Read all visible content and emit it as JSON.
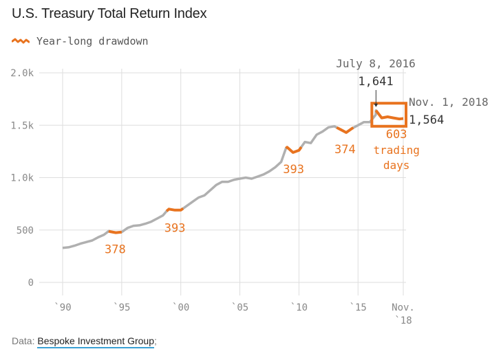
{
  "title": "U.S. Treasury Total Return Index",
  "legend": {
    "label": "Year-long drawdown",
    "icon": "orange-squiggle-icon"
  },
  "footer": {
    "prefix": "Data: ",
    "source": "Bespoke Investment Group",
    "suffix": ";"
  },
  "colors": {
    "line": "#b0b0b0",
    "drawdown": "#e8731f",
    "grid": "#dddddd",
    "link_underline": "#39a0d4"
  },
  "chart_data": {
    "type": "line",
    "title": "U.S. Treasury Total Return Index",
    "xlabel": "",
    "ylabel": "",
    "xlim": [
      1990,
      2018.83
    ],
    "ylim": [
      0,
      2000
    ],
    "y_ticks": [
      {
        "value": 0,
        "label": "0"
      },
      {
        "value": 500,
        "label": "500"
      },
      {
        "value": 1000,
        "label": "1.0k"
      },
      {
        "value": 1500,
        "label": "1.5k"
      },
      {
        "value": 2000,
        "label": "2.0k"
      }
    ],
    "x_ticks": [
      {
        "value": 1990,
        "label": "`90"
      },
      {
        "value": 1995,
        "label": "`95"
      },
      {
        "value": 2000,
        "label": "`00"
      },
      {
        "value": 2005,
        "label": "`05"
      },
      {
        "value": 2010,
        "label": "`10"
      },
      {
        "value": 2015,
        "label": "`15"
      },
      {
        "value": 2018.83,
        "label": "Nov.",
        "label2": "`18"
      }
    ],
    "series": [
      {
        "name": "Total Return Index",
        "points": [
          [
            1990,
            330
          ],
          [
            1990.5,
            335
          ],
          [
            1991,
            350
          ],
          [
            1991.5,
            370
          ],
          [
            1992,
            385
          ],
          [
            1992.5,
            400
          ],
          [
            1993,
            430
          ],
          [
            1993.5,
            455
          ],
          [
            1993.9,
            490
          ],
          [
            1994,
            485
          ],
          [
            1994.5,
            475
          ],
          [
            1995,
            480
          ],
          [
            1995.5,
            520
          ],
          [
            1996,
            540
          ],
          [
            1996.5,
            545
          ],
          [
            1997,
            560
          ],
          [
            1997.5,
            580
          ],
          [
            1998,
            610
          ],
          [
            1998.5,
            640
          ],
          [
            1998.8,
            680
          ],
          [
            1999,
            700
          ],
          [
            1999.5,
            690
          ],
          [
            2000,
            690
          ],
          [
            2000.5,
            730
          ],
          [
            2001,
            770
          ],
          [
            2001.5,
            810
          ],
          [
            2002,
            830
          ],
          [
            2002.5,
            880
          ],
          [
            2003,
            930
          ],
          [
            2003.5,
            960
          ],
          [
            2004,
            960
          ],
          [
            2004.5,
            980
          ],
          [
            2005,
            990
          ],
          [
            2005.5,
            1000
          ],
          [
            2006,
            990
          ],
          [
            2006.5,
            1010
          ],
          [
            2007,
            1030
          ],
          [
            2007.5,
            1060
          ],
          [
            2008,
            1100
          ],
          [
            2008.5,
            1150
          ],
          [
            2008.9,
            1280
          ],
          [
            2009,
            1290
          ],
          [
            2009.5,
            1240
          ],
          [
            2010,
            1260
          ],
          [
            2010.5,
            1340
          ],
          [
            2011,
            1330
          ],
          [
            2011.5,
            1410
          ],
          [
            2012,
            1440
          ],
          [
            2012.5,
            1480
          ],
          [
            2013,
            1490
          ],
          [
            2013.5,
            1460
          ],
          [
            2014,
            1430
          ],
          [
            2014.5,
            1470
          ],
          [
            2015,
            1500
          ],
          [
            2015.5,
            1530
          ],
          [
            2016,
            1530
          ],
          [
            2016.5,
            1600
          ],
          [
            2016.52,
            1641
          ],
          [
            2017,
            1570
          ],
          [
            2017.5,
            1580
          ],
          [
            2018,
            1570
          ],
          [
            2018.5,
            1560
          ],
          [
            2018.83,
            1564
          ]
        ]
      }
    ],
    "drawdowns": [
      {
        "start": 1993.9,
        "end": 1995,
        "days": 378,
        "label": "378"
      },
      {
        "start": 1998.8,
        "end": 2000.2,
        "days": 393,
        "label": "393"
      },
      {
        "start": 2008.9,
        "end": 2010.2,
        "days": 393,
        "label": "393"
      },
      {
        "start": 2013.2,
        "end": 2014.6,
        "days": 374,
        "label": "374"
      },
      {
        "start": 2016.52,
        "end": 2018.83,
        "days": 603,
        "label": "603",
        "label2": "trading",
        "label3": "days"
      }
    ],
    "annotations": {
      "peak_date": "July 8, 2016",
      "peak_value": "1,641",
      "end_date": "Nov. 1, 2018",
      "end_value": "1,564"
    }
  }
}
